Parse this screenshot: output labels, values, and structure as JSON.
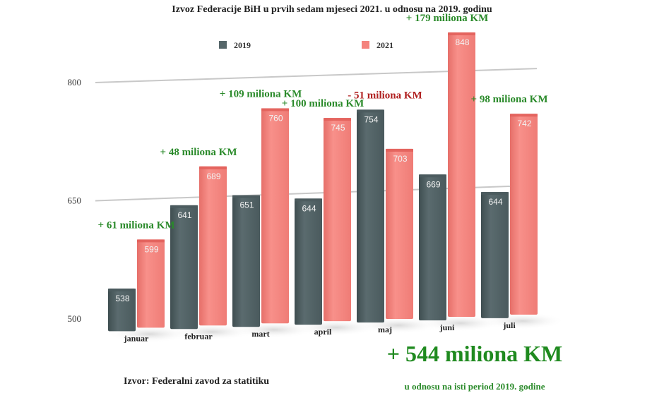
{
  "chart_data": {
    "type": "bar",
    "title": "Izvoz Federacije BiH u prvih sedam mjeseci 2021. u odnosu na 2019. godinu",
    "xlabel": "",
    "ylabel": "",
    "categories": [
      "januar",
      "februar",
      "mart",
      "april",
      "maj",
      "juni",
      "juli"
    ],
    "series": [
      {
        "name": "2019",
        "color": "#56676a",
        "values": [
          538,
          641,
          651,
          644,
          754,
          669,
          644
        ]
      },
      {
        "name": "2021",
        "color": "#f4837d",
        "values": [
          599,
          689,
          760,
          745,
          703,
          848,
          742
        ]
      }
    ],
    "ylim": [
      500,
      800
    ],
    "yticks": [
      500,
      650,
      800
    ],
    "grid": true,
    "legend_position": "top",
    "annotations": [
      {
        "category": "januar",
        "text": "+ 61 miliona KM",
        "color": "#2a8a2a"
      },
      {
        "category": "februar",
        "text": "+ 48 miliona KM",
        "color": "#2a8a2a"
      },
      {
        "category": "mart",
        "text": "+ 109 miliona KM",
        "color": "#2a8a2a"
      },
      {
        "category": "april",
        "text": "+ 100 miliona KM",
        "color": "#2a8a2a"
      },
      {
        "category": "maj",
        "text": "- 51 miliona KM",
        "color": "#b02020"
      },
      {
        "category": "juni",
        "text": "+ 179 miliona KM",
        "color": "#2a8a2a"
      },
      {
        "category": "juli",
        "text": "+ 98 miliona KM",
        "color": "#2a8a2a"
      }
    ],
    "total": "+ 544 miliona KM",
    "total_note": "u odnosu na isti period 2019. godine",
    "source": "Izvor: Federalni zavod za statitiku"
  }
}
